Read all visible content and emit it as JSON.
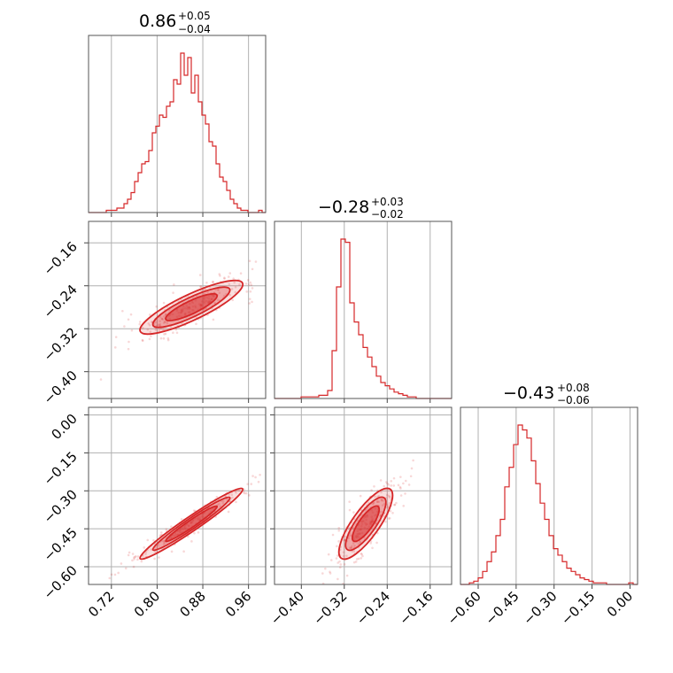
{
  "chart_data": {
    "type": "corner",
    "color": "#d62728",
    "grid": true,
    "parameters": [
      {
        "title_median": "0.86",
        "title_plus": "+0.05",
        "title_minus": "−0.04",
        "range": [
          0.68,
          0.99
        ],
        "ticks": [
          0.72,
          0.8,
          0.88,
          0.96
        ],
        "tick_labels": [
          "0.72",
          "0.80",
          "0.88",
          "0.96"
        ],
        "hist_edges_range": [
          0.68,
          0.99
        ],
        "hist_counts": [
          0,
          0,
          0,
          0,
          0,
          1,
          1,
          1,
          2,
          2,
          4,
          6,
          9,
          14,
          18,
          22,
          23,
          28,
          36,
          39,
          44,
          43,
          48,
          50,
          60,
          58,
          72,
          62,
          70,
          54,
          62,
          50,
          44,
          40,
          32,
          30,
          22,
          16,
          14,
          10,
          6,
          4,
          2,
          1,
          1,
          0,
          0,
          0,
          1,
          0
        ]
      },
      {
        "title_median": "−0.28",
        "title_plus": "+0.03",
        "title_minus": "−0.02",
        "range": [
          -0.45,
          -0.12
        ],
        "ticks": [
          -0.4,
          -0.32,
          -0.24,
          -0.16
        ],
        "tick_labels": [
          "−0.40",
          "−0.32",
          "−0.24",
          "−0.16"
        ],
        "hist_edges_range": [
          -0.45,
          -0.12
        ],
        "hist_counts": [
          0,
          0,
          0,
          0,
          0,
          0,
          1,
          1,
          1,
          1,
          2,
          2,
          5,
          30,
          70,
          100,
          98,
          60,
          48,
          40,
          32,
          26,
          20,
          14,
          10,
          8,
          6,
          4,
          3,
          2,
          1,
          1,
          0,
          0,
          0,
          0,
          0,
          0,
          0,
          0
        ]
      },
      {
        "title_median": "−0.43",
        "title_plus": "+0.08",
        "title_minus": "−0.06",
        "range": [
          -0.67,
          0.03
        ],
        "ticks": [
          -0.6,
          -0.45,
          -0.3,
          -0.15,
          0.0
        ],
        "tick_labels": [
          "−0.60",
          "−0.45",
          "−0.30",
          "−0.15",
          "0.00"
        ],
        "hist_edges_range": [
          -0.67,
          0.03
        ],
        "hist_counts": [
          0,
          0,
          1,
          2,
          4,
          8,
          14,
          20,
          30,
          40,
          60,
          72,
          86,
          98,
          95,
          90,
          76,
          62,
          50,
          40,
          30,
          22,
          18,
          14,
          10,
          8,
          6,
          4,
          3,
          2,
          1,
          1,
          1,
          0,
          0,
          0,
          0,
          0,
          1,
          0
        ]
      }
    ],
    "pairs": [
      {
        "x_param": 0,
        "y_param": 1,
        "correlation": 0.85
      },
      {
        "x_param": 0,
        "y_param": 2,
        "correlation": 0.97
      },
      {
        "x_param": 1,
        "y_param": 2,
        "correlation": 0.8
      }
    ]
  }
}
